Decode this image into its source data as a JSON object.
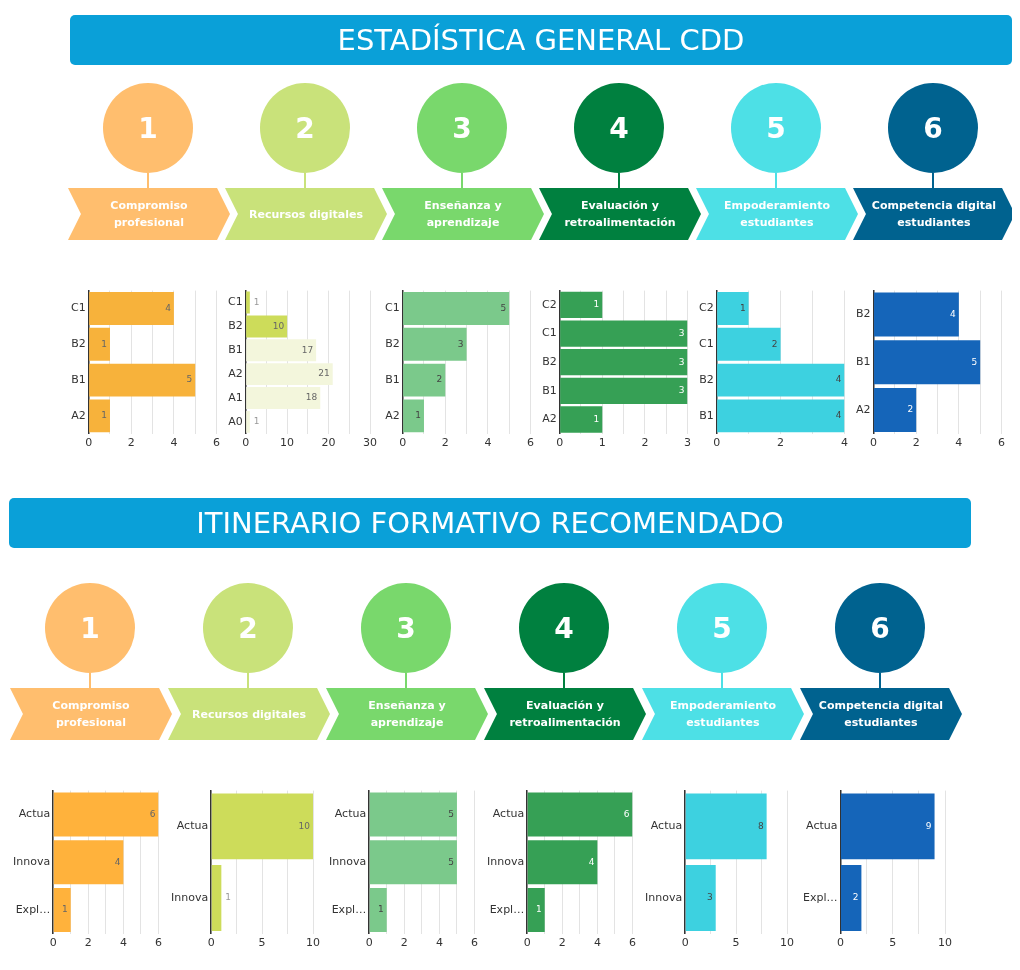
{
  "chart_data": [
    {
      "type": "bar",
      "orientation": "horizontal",
      "title": "1",
      "subtitle": "Compromiso profesional",
      "annotations": [
        "ESTADÍSTICA GENERAL CDD"
      ],
      "categories": [
        "C1",
        "B2",
        "B1",
        "A2"
      ],
      "values": [
        4,
        1,
        5,
        1
      ],
      "color": "#f7b23b",
      "xlim": [
        0,
        6
      ],
      "xticks": [
        0,
        {
          "value": 1,
          "label": null
        },
        2,
        {
          "value": 3,
          "label": null
        },
        4,
        {
          "value": 5,
          "label": null
        },
        6
      ],
      "grid": "x",
      "data_labels": true
    },
    {
      "type": "bar",
      "orientation": "horizontal",
      "title": "2",
      "subtitle": "Recursos digitales",
      "categories": [
        "C1",
        "B2",
        "B1",
        "A2",
        "A1",
        "A0"
      ],
      "values": [
        1,
        10,
        17,
        21,
        18,
        1
      ],
      "colors": [
        "#cddc5a",
        "#cddc5a",
        "#f3f6dc",
        "#f3f6dc",
        "#f3f6dc",
        "#f3f6dc"
      ],
      "xlim": [
        0,
        30
      ],
      "xticks": [
        0,
        {
          "value": 5,
          "label": null
        },
        10,
        {
          "value": 15,
          "label": null
        },
        20,
        {
          "value": 25,
          "label": null
        },
        30
      ],
      "grid": "x",
      "data_labels": true
    },
    {
      "type": "bar",
      "orientation": "horizontal",
      "title": "3",
      "subtitle": "Enseñanza y aprendizaje",
      "categories": [
        "C1",
        "B2",
        "B1",
        "A2"
      ],
      "values": [
        5,
        3,
        2,
        1
      ],
      "color": "#7bc98b",
      "xlim": [
        0,
        6
      ],
      "xticks": [
        0,
        {
          "value": 1,
          "label": null
        },
        2,
        {
          "value": 3,
          "label": null
        },
        4,
        {
          "value": 5,
          "label": null
        },
        6
      ],
      "grid": "x",
      "data_labels": true
    },
    {
      "type": "bar",
      "orientation": "horizontal",
      "title": "4",
      "subtitle": "Evaluación y retroalimentación",
      "categories": [
        "C2",
        "C1",
        "B2",
        "B1",
        "A2"
      ],
      "values": [
        1,
        3,
        3,
        3,
        1
      ],
      "color": "#36a055",
      "xlim": [
        0,
        3
      ],
      "xticks": [
        0,
        {
          "value": 0.5,
          "label": null
        },
        1,
        {
          "value": 1.5,
          "label": null
        },
        2,
        {
          "value": 2.5,
          "label": null
        },
        3
      ],
      "grid": "x",
      "data_labels": true
    },
    {
      "type": "bar",
      "orientation": "horizontal",
      "title": "5",
      "subtitle": "Empoderamiento estudiantes",
      "categories": [
        "C2",
        "C1",
        "B2",
        "B1"
      ],
      "values": [
        1,
        2,
        4,
        4
      ],
      "color": "#3dd1e0",
      "xlim": [
        0,
        4
      ],
      "xticks": [
        0,
        {
          "value": 1,
          "label": null
        },
        2,
        {
          "value": 3,
          "label": null
        },
        4
      ],
      "grid": "x",
      "data_labels": true
    },
    {
      "type": "bar",
      "orientation": "horizontal",
      "title": "6",
      "subtitle": "Competencia digital estudiantes",
      "categories": [
        "B2",
        "B1",
        "A2"
      ],
      "values": [
        4,
        5,
        2
      ],
      "color": "#1565b9",
      "xlim": [
        0,
        6
      ],
      "xticks": [
        0,
        {
          "value": 1,
          "label": null
        },
        2,
        {
          "value": 3,
          "label": null
        },
        4,
        {
          "value": 5,
          "label": null
        },
        6
      ],
      "grid": "x",
      "data_labels": true
    },
    {
      "type": "bar",
      "orientation": "horizontal",
      "title": "1",
      "subtitle": "Compromiso profesional",
      "annotations": [
        "ITINERARIO FORMATIVO RECOMENDADO"
      ],
      "categories": [
        "Actua",
        "Innova",
        "Expl…"
      ],
      "values": [
        6,
        4,
        1
      ],
      "color": "#ffb23c",
      "xlim": [
        0,
        6
      ],
      "xticks": [
        0,
        {
          "value": 1,
          "label": null
        },
        2,
        {
          "value": 3,
          "label": null
        },
        4,
        {
          "value": 5,
          "label": null
        },
        6
      ],
      "grid": "x",
      "data_labels": true
    },
    {
      "type": "bar",
      "orientation": "horizontal",
      "title": "2",
      "subtitle": "Recursos digitales",
      "categories": [
        "Actua",
        "Innova"
      ],
      "values": [
        10,
        1
      ],
      "color": "#cddc5a",
      "xlim": [
        0,
        10
      ],
      "xticks": [
        0,
        {
          "value": 2.5,
          "label": null
        },
        5,
        {
          "value": 7.5,
          "label": null
        },
        10
      ],
      "grid": "x",
      "data_labels": true
    },
    {
      "type": "bar",
      "orientation": "horizontal",
      "title": "3",
      "subtitle": "Enseñanza y aprendizaje",
      "categories": [
        "Actua",
        "Innova",
        "Expl…"
      ],
      "values": [
        5,
        5,
        1
      ],
      "color": "#7bc98b",
      "xlim": [
        0,
        6
      ],
      "xticks": [
        0,
        {
          "value": 1,
          "label": null
        },
        2,
        {
          "value": 3,
          "label": null
        },
        4,
        {
          "value": 5,
          "label": null
        },
        6
      ],
      "grid": "x",
      "data_labels": true
    },
    {
      "type": "bar",
      "orientation": "horizontal",
      "title": "4",
      "subtitle": "Evaluación y retroalimentación",
      "categories": [
        "Actua",
        "Innova",
        "Expl…"
      ],
      "values": [
        6,
        4,
        1
      ],
      "color": "#36a055",
      "xlim": [
        0,
        6
      ],
      "xticks": [
        0,
        {
          "value": 1,
          "label": null
        },
        2,
        {
          "value": 3,
          "label": null
        },
        4,
        {
          "value": 5,
          "label": null
        },
        6
      ],
      "grid": "x",
      "data_labels": true
    },
    {
      "type": "bar",
      "orientation": "horizontal",
      "title": "5",
      "subtitle": "Empoderamiento estudiantes",
      "categories": [
        "Actua",
        "Innova"
      ],
      "values": [
        8,
        3
      ],
      "color": "#3dd1e0",
      "xlim": [
        0,
        10
      ],
      "xticks": [
        0,
        {
          "value": 2.5,
          "label": null
        },
        5,
        {
          "value": 7.5,
          "label": null
        },
        10
      ],
      "grid": "x",
      "data_labels": true
    },
    {
      "type": "bar",
      "orientation": "horizontal",
      "title": "6",
      "subtitle": "Competencia digital estudiantes",
      "categories": [
        "Actua",
        "Expl…"
      ],
      "values": [
        9,
        2
      ],
      "color": "#1565b9",
      "xlim": [
        0,
        10
      ],
      "xticks": [
        0,
        {
          "value": 2.5,
          "label": null
        },
        5,
        {
          "value": 7.5,
          "label": null
        },
        10
      ],
      "grid": "x",
      "data_labels": true
    }
  ]
}
